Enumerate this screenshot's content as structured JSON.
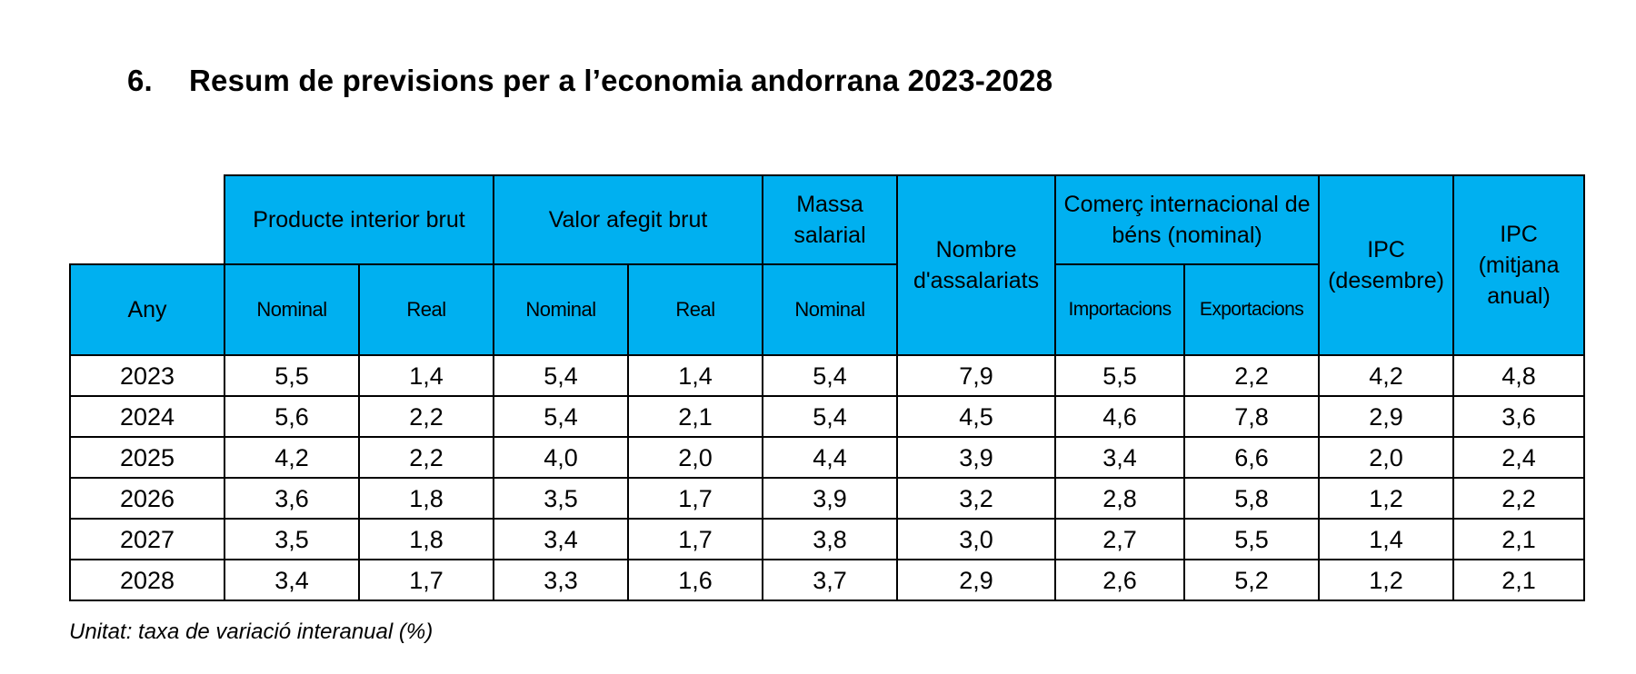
{
  "section": {
    "number": "6.",
    "title": "Resum de previsions per a l’economia andorrana 2023-2028"
  },
  "table": {
    "header": {
      "pib": "Producte interior brut",
      "vab": "Valor afegit brut",
      "massa_salarial": "Massa salarial",
      "assalariats": "Nombre d'assalariats",
      "comerc": "Comerç internacional de béns (nominal)",
      "ipc_desembre": "IPC (desembre)",
      "ipc_mitjana": "IPC (mitjana anual)",
      "any": "Any",
      "pib_nominal": "Nominal",
      "pib_real": "Real",
      "vab_nominal": "Nominal",
      "vab_real": "Real",
      "massa_nominal": "Nominal",
      "importacions": "Importacions",
      "exportacions": "Exportacions"
    },
    "rows": [
      {
        "any": "2023",
        "pib_nominal": "5,5",
        "pib_real": "1,4",
        "vab_nominal": "5,4",
        "vab_real": "1,4",
        "massa_nominal": "5,4",
        "assalariats": "7,9",
        "importacions": "5,5",
        "exportacions": "2,2",
        "ipc_desembre": "4,2",
        "ipc_mitjana": "4,8"
      },
      {
        "any": "2024",
        "pib_nominal": "5,6",
        "pib_real": "2,2",
        "vab_nominal": "5,4",
        "vab_real": "2,1",
        "massa_nominal": "5,4",
        "assalariats": "4,5",
        "importacions": "4,6",
        "exportacions": "7,8",
        "ipc_desembre": "2,9",
        "ipc_mitjana": "3,6"
      },
      {
        "any": "2025",
        "pib_nominal": "4,2",
        "pib_real": "2,2",
        "vab_nominal": "4,0",
        "vab_real": "2,0",
        "massa_nominal": "4,4",
        "assalariats": "3,9",
        "importacions": "3,4",
        "exportacions": "6,6",
        "ipc_desembre": "2,0",
        "ipc_mitjana": "2,4"
      },
      {
        "any": "2026",
        "pib_nominal": "3,6",
        "pib_real": "1,8",
        "vab_nominal": "3,5",
        "vab_real": "1,7",
        "massa_nominal": "3,9",
        "assalariats": "3,2",
        "importacions": "2,8",
        "exportacions": "5,8",
        "ipc_desembre": "1,2",
        "ipc_mitjana": "2,2"
      },
      {
        "any": "2027",
        "pib_nominal": "3,5",
        "pib_real": "1,8",
        "vab_nominal": "3,4",
        "vab_real": "1,7",
        "massa_nominal": "3,8",
        "assalariats": "3,0",
        "importacions": "2,7",
        "exportacions": "5,5",
        "ipc_desembre": "1,4",
        "ipc_mitjana": "2,1"
      },
      {
        "any": "2028",
        "pib_nominal": "3,4",
        "pib_real": "1,7",
        "vab_nominal": "3,3",
        "vab_real": "1,6",
        "massa_nominal": "3,7",
        "assalariats": "2,9",
        "importacions": "2,6",
        "exportacions": "5,2",
        "ipc_desembre": "1,2",
        "ipc_mitjana": "2,1"
      }
    ]
  },
  "footnote": "Unitat: taxa de variació interanual (%)",
  "colors": {
    "header_fill": "#00b0f0",
    "border": "#000000",
    "background": "#ffffff"
  }
}
